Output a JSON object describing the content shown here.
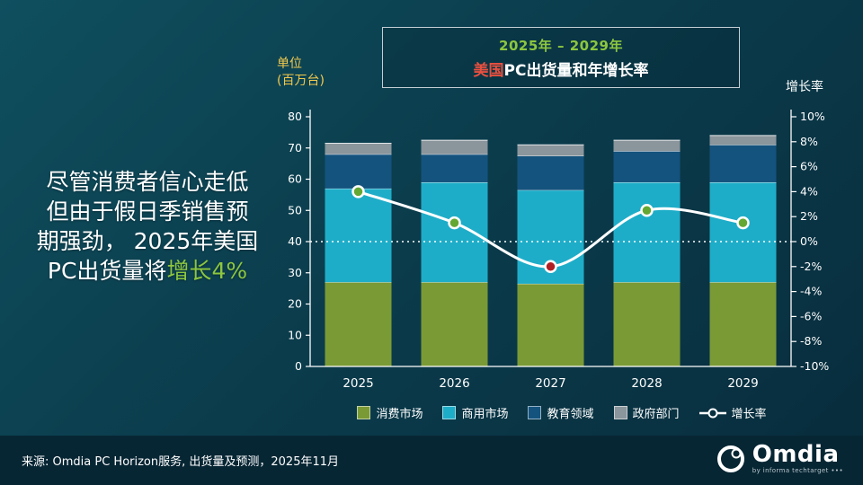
{
  "headline": {
    "line1": "尽管消费者信心走低",
    "line2": "但由于假日季销售预",
    "line3": "期强劲， 2025年美国",
    "line4_white": "PC出货量将",
    "line4_green": "增长4%"
  },
  "title_box": {
    "period": "2025年 – 2029年",
    "title_red": "美国",
    "title_white": "PC出货量和年增长率"
  },
  "axes": {
    "left_label_line1": "单位",
    "left_label_line2": "(百万台)",
    "right_label": "增长率"
  },
  "chart_data": {
    "type": "bar",
    "subtype": "stacked-bar-with-line",
    "title": "美国PC出货量和年增长率 2025年–2029年",
    "categories": [
      "2025",
      "2026",
      "2027",
      "2028",
      "2029"
    ],
    "series": [
      {
        "name": "消费市场",
        "color": "#7a9a35",
        "values": [
          27,
          27,
          26.5,
          27,
          27
        ]
      },
      {
        "name": "商用市场",
        "color": "#1eadc8",
        "values": [
          30,
          32,
          30,
          32,
          32
        ]
      },
      {
        "name": "教育领域",
        "color": "#14537e",
        "values": [
          11,
          9,
          11,
          10,
          12
        ]
      },
      {
        "name": "政府部门",
        "color": "#8a959c",
        "values": [
          3.5,
          4.5,
          3.5,
          3.5,
          3
        ]
      }
    ],
    "line_series": {
      "name": "增长率",
      "values": [
        4,
        1.5,
        -2,
        2.5,
        1.5
      ],
      "marker_colors": [
        "#64a833",
        "#64a833",
        "#b01f24",
        "#64a833",
        "#64a833"
      ],
      "line_color": "#ffffff"
    },
    "left_axis": {
      "label": "单位 (百万台)",
      "min": 0,
      "max": 80,
      "step": 10
    },
    "right_axis": {
      "label": "增长率",
      "min": -10,
      "max": 10,
      "step": 2,
      "suffix": "%"
    },
    "zero_line": true,
    "legend_position": "bottom"
  },
  "footer": {
    "source": "来源: Omdia PC Horizon服务, 出货量及预测，2025年11月",
    "brand": "Omdia",
    "brand_sub": "by informa techtarget •••"
  },
  "colors": {
    "accent_green": "#8dc63f",
    "accent_red": "#e8503f",
    "axis_caption_yellow": "#f2c94c",
    "background_top": "#0f4f5e",
    "background_bottom": "#082c3c",
    "footer_band": "#072634"
  }
}
